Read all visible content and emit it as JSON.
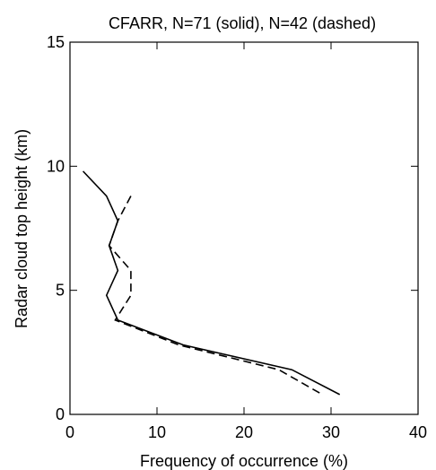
{
  "chart_data": {
    "type": "line",
    "title": "CFARR, N=71 (solid), N=42 (dashed)",
    "x_label": "Frequency of occurrence (%)",
    "y_label": "Radar cloud top height (km)",
    "xlim": [
      0,
      40
    ],
    "xticks": [
      0,
      10,
      20,
      30,
      40
    ],
    "ylim": [
      0,
      15
    ],
    "yticks": [
      0,
      5,
      10,
      15
    ],
    "grid": false,
    "series": [
      {
        "color": "#000000",
        "dash": false,
        "x": [
          1.5,
          4.2,
          5.5,
          4.5,
          5.5,
          4.2,
          5.5,
          13,
          25.5,
          31
        ],
        "values": [
          9.8,
          8.8,
          7.8,
          6.8,
          5.8,
          4.8,
          3.8,
          2.8,
          1.8,
          0.8
        ]
      },
      {
        "color": "#000000",
        "dash": true,
        "x": [
          7,
          5.5,
          4.5,
          7,
          7,
          5.2,
          12.5,
          24,
          29
        ],
        "values": [
          8.8,
          7.8,
          6.8,
          5.8,
          4.8,
          3.8,
          2.8,
          1.8,
          0.8
        ]
      }
    ]
  }
}
